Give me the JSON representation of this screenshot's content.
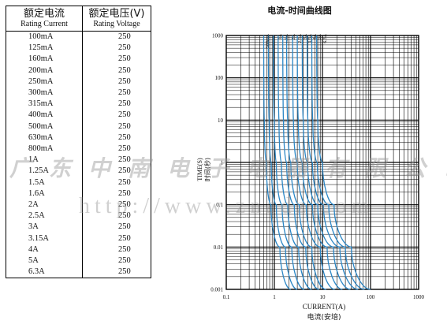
{
  "table": {
    "header": {
      "current_zh": "额定电流",
      "current_en": "Rating Current",
      "voltage_zh": "额定电压(V)",
      "voltage_en": "Rating Voltage"
    },
    "rows": [
      {
        "current": "100mA",
        "voltage": "250"
      },
      {
        "current": "125mA",
        "voltage": "250"
      },
      {
        "current": "160mA",
        "voltage": "250"
      },
      {
        "current": "200mA",
        "voltage": "250"
      },
      {
        "current": "250mA",
        "voltage": "250"
      },
      {
        "current": "300mA",
        "voltage": "250"
      },
      {
        "current": "315mA",
        "voltage": "250"
      },
      {
        "current": "400mA",
        "voltage": "250"
      },
      {
        "current": "500mA",
        "voltage": "250"
      },
      {
        "current": "630mA",
        "voltage": "250"
      },
      {
        "current": "800mA",
        "voltage": "250"
      },
      {
        "current": "1A",
        "voltage": "250"
      },
      {
        "current": "1.25A",
        "voltage": "250"
      },
      {
        "current": "1.5A",
        "voltage": "250"
      },
      {
        "current": "1.6A",
        "voltage": "250"
      },
      {
        "current": "2A",
        "voltage": "250"
      },
      {
        "current": "2.5A",
        "voltage": "250"
      },
      {
        "current": "3A",
        "voltage": "250"
      },
      {
        "current": "3.15A",
        "voltage": "250"
      },
      {
        "current": "4A",
        "voltage": "250"
      },
      {
        "current": "5A",
        "voltage": "250"
      },
      {
        "current": "6.3A",
        "voltage": "250"
      }
    ]
  },
  "watermark": {
    "company": "广东中南电子电器有限公司",
    "url": "http://www.znadz.com"
  },
  "chart_data": {
    "type": "line",
    "title": "电流-时间曲线图",
    "xlabel": "CURRENT(A)",
    "xlabel_zh": "电流(安培)",
    "ylabel": "TIME(S)",
    "ylabel_zh": "时间(秒)",
    "xscale": "log",
    "yscale": "log",
    "xlim": [
      0.1,
      1000
    ],
    "ylim": [
      0.001,
      1000
    ],
    "x_ticks": [
      "0.1",
      "1",
      "10",
      "100",
      "1000"
    ],
    "y_ticks": [
      "0.001",
      "0.01",
      "0.1",
      "1",
      "10",
      "100",
      "1000"
    ],
    "grid": true,
    "line_color": "#2b86c5",
    "series_labels": [
      "500mA",
      "1A",
      "1.5A",
      "2A",
      "2.5A",
      "3A",
      "3.5A",
      "4A",
      "5A",
      "6.3A"
    ],
    "series": [
      {
        "rating": 0.5,
        "points": [
          [
            0.6,
            1000
          ],
          [
            0.62,
            10
          ],
          [
            0.68,
            1
          ],
          [
            0.85,
            0.1
          ],
          [
            1.3,
            0.01
          ],
          [
            2.2,
            0.001
          ]
        ]
      },
      {
        "rating": 0.63,
        "points": [
          [
            0.75,
            1000
          ],
          [
            0.78,
            10
          ],
          [
            0.86,
            1
          ],
          [
            1.1,
            0.1
          ],
          [
            1.7,
            0.01
          ],
          [
            3.0,
            0.001
          ]
        ]
      },
      {
        "rating": 0.8,
        "points": [
          [
            0.95,
            1000
          ],
          [
            1.0,
            10
          ],
          [
            1.1,
            1
          ],
          [
            1.45,
            0.1
          ],
          [
            2.3,
            0.01
          ],
          [
            4.2,
            0.001
          ]
        ]
      },
      {
        "rating": 1,
        "points": [
          [
            1.2,
            1000
          ],
          [
            1.25,
            10
          ],
          [
            1.4,
            1
          ],
          [
            1.9,
            0.1
          ],
          [
            3.2,
            0.01
          ],
          [
            6.0,
            0.001
          ]
        ]
      },
      {
        "rating": 1.25,
        "points": [
          [
            1.5,
            1000
          ],
          [
            1.55,
            10
          ],
          [
            1.8,
            1
          ],
          [
            2.6,
            0.1
          ],
          [
            4.5,
            0.01
          ],
          [
            8.5,
            0.001
          ]
        ]
      },
      {
        "rating": 1.5,
        "points": [
          [
            1.8,
            1000
          ],
          [
            1.9,
            10
          ],
          [
            2.2,
            1
          ],
          [
            3.3,
            0.1
          ],
          [
            6.0,
            0.01
          ],
          [
            12,
            0.001
          ]
        ]
      },
      {
        "rating": 2,
        "points": [
          [
            2.4,
            1000
          ],
          [
            2.5,
            10
          ],
          [
            3.0,
            1
          ],
          [
            4.6,
            0.1
          ],
          [
            9.0,
            0.01
          ],
          [
            18,
            0.001
          ]
        ]
      },
      {
        "rating": 2.5,
        "points": [
          [
            3.0,
            1000
          ],
          [
            3.15,
            10
          ],
          [
            3.8,
            1
          ],
          [
            6.2,
            0.1
          ],
          [
            12.5,
            0.01
          ],
          [
            26,
            0.001
          ]
        ]
      },
      {
        "rating": 3.15,
        "points": [
          [
            3.8,
            1000
          ],
          [
            4.0,
            10
          ],
          [
            4.9,
            1
          ],
          [
            8.0,
            0.1
          ],
          [
            17,
            0.01
          ],
          [
            38,
            0.001
          ]
        ]
      },
      {
        "rating": 4,
        "points": [
          [
            4.8,
            1000
          ],
          [
            5.0,
            10
          ],
          [
            6.2,
            1
          ],
          [
            10.5,
            0.1
          ],
          [
            23,
            0.01
          ],
          [
            55,
            0.001
          ]
        ]
      },
      {
        "rating": 5,
        "points": [
          [
            6.0,
            1000
          ],
          [
            6.3,
            10
          ],
          [
            7.8,
            1
          ],
          [
            13.5,
            0.1
          ],
          [
            30,
            0.01
          ],
          [
            75,
            0.001
          ]
        ]
      },
      {
        "rating": 6.3,
        "points": [
          [
            7.6,
            1000
          ],
          [
            8.0,
            10
          ],
          [
            10,
            1
          ],
          [
            17.5,
            0.1
          ],
          [
            40,
            0.01
          ],
          [
            100,
            0.001
          ]
        ]
      }
    ]
  }
}
